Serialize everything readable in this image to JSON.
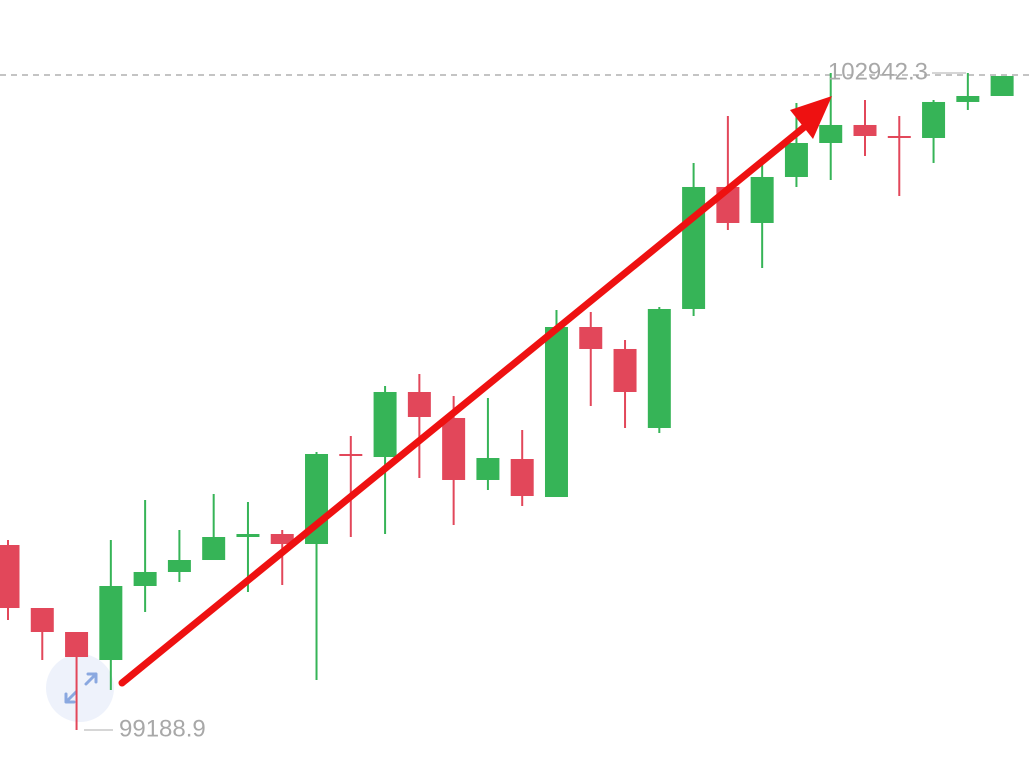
{
  "chart_data": {
    "type": "candlestick",
    "up_color": "#36b457",
    "down_color": "#e2475a",
    "ylim": [
      99034.7,
      103359.3
    ],
    "open": [
      100245.8,
      99885.9,
      99748.8,
      99588.8,
      100011.6,
      100091.6,
      100160.1,
      100291.5,
      100308.6,
      100251.5,
      100765.7,
      100748.5,
      101119.9,
      100971.4,
      100617.2,
      100737.1,
      100520.0,
      101491.2,
      101365.6,
      100914.2,
      101594.1,
      102291.1,
      102085.4,
      102348.2,
      102542.4,
      102645.3,
      102582.4,
      102571.0,
      102776.7,
      102810.9
    ],
    "high": [
      100274.4,
      99885.9,
      99748.8,
      100274.4,
      100502.9,
      100331.5,
      100537.2,
      100491.5,
      100331.5,
      100777.1,
      100868.5,
      101154.2,
      101222.7,
      101097.0,
      101085.6,
      100902.8,
      101588.4,
      101576.9,
      101417.0,
      101605.5,
      102428.2,
      102696.7,
      102416.7,
      102771.0,
      102942.3,
      102788.1,
      102696.7,
      102788.1,
      102942.3,
      102925.2
    ],
    "low": [
      99817.3,
      99588.8,
      99188.9,
      99417.4,
      99863.0,
      100034.4,
      100160.1,
      99977.3,
      100017.3,
      99474.6,
      100291.5,
      100308.6,
      100628.6,
      100360.1,
      100560.0,
      100468.6,
      100520.0,
      101039.9,
      100914.2,
      100885.7,
      101554.1,
      102045.4,
      101828.3,
      102291.1,
      102331.1,
      102468.2,
      102239.6,
      102428.2,
      102731.0,
      102810.9
    ],
    "close": [
      99885.9,
      99748.8,
      99605.9,
      100011.6,
      100091.6,
      100160.1,
      100291.5,
      100308.6,
      100251.5,
      100765.7,
      100754.3,
      101119.9,
      100977.1,
      100617.2,
      100742.8,
      100525.7,
      101491.2,
      101365.6,
      101119.9,
      101594.1,
      102291.1,
      102085.4,
      102348.2,
      102542.4,
      102645.3,
      102582.4,
      102571.0,
      102776.7,
      102810.9,
      102925.2
    ],
    "max_marker": {
      "value": 102942.3,
      "label": "102942.3"
    },
    "min_marker": {
      "value": 99188.9,
      "label": "99188.9"
    }
  }
}
